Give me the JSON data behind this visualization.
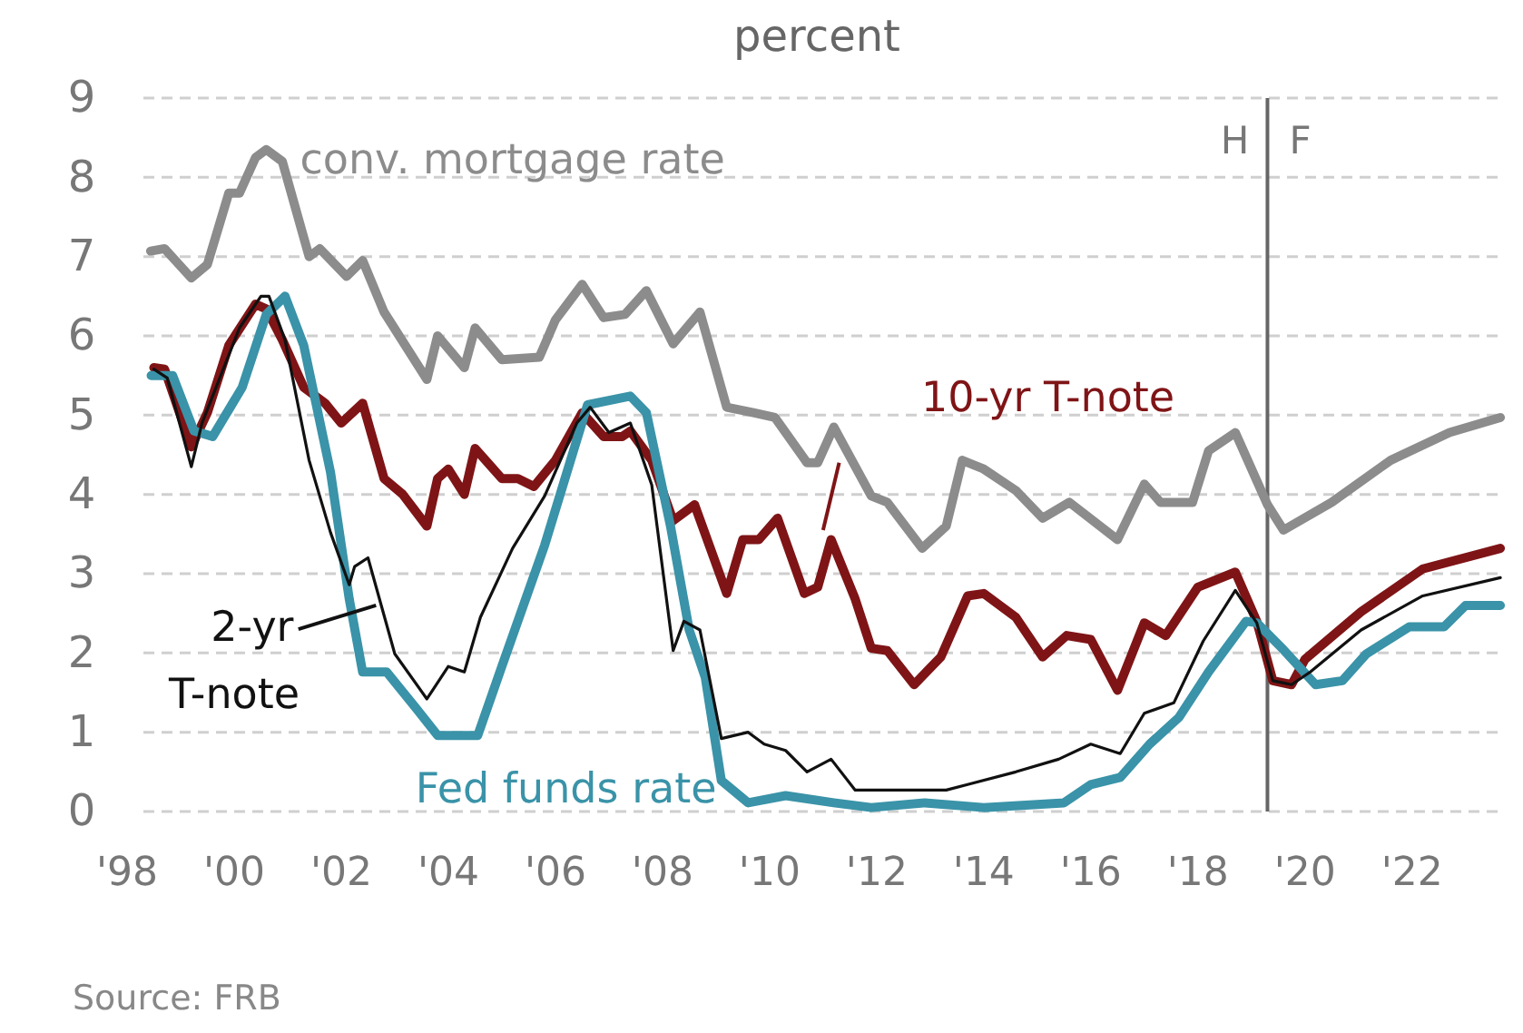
{
  "chart_data": {
    "type": "line",
    "subtitle": "percent",
    "xlim": [
      1998,
      2023.7
    ],
    "xticks": [
      {
        "value": 1998,
        "label": "'98"
      },
      {
        "value": 2000,
        "label": "'00"
      },
      {
        "value": 2002,
        "label": "'02"
      },
      {
        "value": 2004,
        "label": "'04"
      },
      {
        "value": 2006,
        "label": "'06"
      },
      {
        "value": 2008,
        "label": "'08"
      },
      {
        "value": 2010,
        "label": "'10"
      },
      {
        "value": 2012,
        "label": "'12"
      },
      {
        "value": 2014,
        "label": "'14"
      },
      {
        "value": 2016,
        "label": "'16"
      },
      {
        "value": 2018,
        "label": "'18"
      },
      {
        "value": 2020,
        "label": "'20"
      },
      {
        "value": 2022,
        "label": "'22"
      }
    ],
    "ylim": [
      0,
      9
    ],
    "yticks": [
      0,
      1,
      2,
      3,
      4,
      5,
      6,
      7,
      8,
      9
    ],
    "grid": "y",
    "line_style": "solid",
    "marker": "none",
    "series": [
      {
        "name": "conv. mortgage rate",
        "color": "#8c8c8c",
        "x": [
          1998.44,
          1998.7,
          1999.2,
          1999.5,
          1999.9,
          2000.1,
          2000.4,
          2000.6,
          2000.9,
          2001.4,
          2001.6,
          2002.1,
          2002.4,
          2002.8,
          2003.6,
          2003.8,
          2004.3,
          2004.5,
          2005.0,
          2005.7,
          2006.0,
          2006.5,
          2006.9,
          2007.3,
          2007.7,
          2008.2,
          2008.7,
          2009.2,
          2009.7,
          2010.1,
          2010.7,
          2010.9,
          2011.2,
          2011.9,
          2012.2,
          2012.85,
          2013.3,
          2013.6,
          2014.0,
          2014.6,
          2015.1,
          2015.6,
          2016.5,
          2017.0,
          2017.3,
          2017.9,
          2018.2,
          2018.7,
          2019.3,
          2019.6,
          2020.5,
          2021.6,
          2022.7,
          2023.65
        ],
        "values": [
          7.07,
          7.1,
          6.73,
          6.9,
          7.8,
          7.8,
          8.25,
          8.35,
          8.2,
          7.0,
          7.1,
          6.75,
          6.95,
          6.3,
          5.45,
          6.0,
          5.6,
          6.1,
          5.7,
          5.73,
          6.2,
          6.65,
          6.23,
          6.27,
          6.57,
          5.9,
          6.3,
          5.1,
          5.03,
          4.97,
          4.4,
          4.4,
          4.85,
          3.98,
          3.9,
          3.32,
          3.6,
          4.43,
          4.32,
          4.05,
          3.7,
          3.9,
          3.43,
          4.13,
          3.9,
          3.9,
          4.55,
          4.78,
          3.87,
          3.55,
          3.9,
          4.43,
          4.78,
          4.97
        ]
      },
      {
        "name": "10-yr T-note",
        "color": "#7f1416",
        "x": [
          1998.5,
          1998.7,
          1999.2,
          1999.5,
          1999.9,
          2000.4,
          2000.6,
          2000.9,
          2001.3,
          2001.7,
          2002.0,
          2002.4,
          2002.8,
          2003.15,
          2003.6,
          2003.8,
          2004.0,
          2004.3,
          2004.5,
          2005.0,
          2005.3,
          2005.6,
          2006.0,
          2006.5,
          2006.9,
          2007.25,
          2007.4,
          2007.8,
          2008.2,
          2008.6,
          2009.2,
          2009.5,
          2009.8,
          2010.15,
          2010.65,
          2010.9,
          2011.15,
          2011.6,
          2011.9,
          2012.2,
          2012.7,
          2013.2,
          2013.7,
          2014.0,
          2014.6,
          2015.1,
          2015.55,
          2016.0,
          2016.5,
          2017.0,
          2017.4,
          2018.0,
          2018.7,
          2019.1,
          2019.4,
          2019.75,
          2020.0,
          2021.05,
          2022.2,
          2023.65
        ],
        "values": [
          5.6,
          5.58,
          4.6,
          5.03,
          5.88,
          6.4,
          6.34,
          5.95,
          5.35,
          5.15,
          4.9,
          5.15,
          4.2,
          4.0,
          3.6,
          4.2,
          4.32,
          4.0,
          4.58,
          4.2,
          4.2,
          4.1,
          4.43,
          5.03,
          4.73,
          4.73,
          4.8,
          4.43,
          3.67,
          3.87,
          2.75,
          3.43,
          3.43,
          3.7,
          2.75,
          2.83,
          3.43,
          2.68,
          2.06,
          2.03,
          1.6,
          1.95,
          2.72,
          2.75,
          2.45,
          1.95,
          2.22,
          2.17,
          1.53,
          2.38,
          2.22,
          2.83,
          3.02,
          2.4,
          1.65,
          1.6,
          1.92,
          2.52,
          3.06,
          3.32
        ]
      },
      {
        "name": "Fed funds rate",
        "color": "#3a93a8",
        "x": [
          1998.45,
          1998.85,
          1999.25,
          1999.6,
          2000.15,
          2000.6,
          2000.95,
          2001.3,
          2001.8,
          2002.15,
          2002.4,
          2002.85,
          2003.4,
          2003.8,
          2004.55,
          2005.0,
          2005.8,
          2006.6,
          2007.4,
          2007.7,
          2008.15,
          2008.5,
          2008.8,
          2009.1,
          2009.6,
          2010.3,
          2011.2,
          2011.9,
          2012.9,
          2014.0,
          2015.5,
          2016.0,
          2016.55,
          2017.1,
          2017.65,
          2018.2,
          2018.9,
          2019.1,
          2019.6,
          2020.2,
          2020.7,
          2021.15,
          2021.95,
          2022.6,
          2023.0,
          2023.65
        ],
        "values": [
          5.5,
          5.5,
          4.8,
          4.73,
          5.35,
          6.27,
          6.5,
          5.88,
          4.28,
          2.68,
          1.76,
          1.76,
          1.3,
          0.96,
          0.96,
          1.83,
          3.36,
          5.13,
          5.24,
          5.03,
          3.6,
          2.29,
          1.69,
          0.39,
          0.11,
          0.2,
          0.11,
          0.05,
          0.11,
          0.05,
          0.11,
          0.34,
          0.43,
          0.85,
          1.19,
          1.76,
          2.4,
          2.38,
          2.04,
          1.6,
          1.65,
          1.99,
          2.33,
          2.33,
          2.6,
          2.6
        ]
      },
      {
        "name": "2-yr T-note",
        "color": "#111111",
        "x": [
          1998.5,
          1998.75,
          1999.2,
          1999.4,
          2000.1,
          2000.5,
          2000.65,
          2000.95,
          2001.4,
          2001.8,
          2002.15,
          2002.25,
          2002.5,
          2003.0,
          2003.6,
          2004.0,
          2004.3,
          2004.6,
          2005.2,
          2005.8,
          2006.4,
          2006.65,
          2007.0,
          2007.4,
          2007.8,
          2008.2,
          2008.4,
          2008.7,
          2009.1,
          2009.6,
          2009.9,
          2010.3,
          2010.7,
          2011.15,
          2011.6,
          2012.6,
          2013.3,
          2013.7,
          2014.6,
          2015.4,
          2016.0,
          2016.55,
          2017.0,
          2017.55,
          2018.1,
          2018.7,
          2019.1,
          2019.4,
          2019.75,
          2020.1,
          2021.05,
          2022.2,
          2023.65
        ],
        "values": [
          5.58,
          5.47,
          4.35,
          4.9,
          6.1,
          6.5,
          6.5,
          5.95,
          4.43,
          3.52,
          2.86,
          3.09,
          3.2,
          1.99,
          1.42,
          1.83,
          1.76,
          2.45,
          3.32,
          3.98,
          4.9,
          5.1,
          4.78,
          4.9,
          4.12,
          2.03,
          2.4,
          2.29,
          0.92,
          1.0,
          0.85,
          0.77,
          0.5,
          0.66,
          0.27,
          0.27,
          0.27,
          0.34,
          0.5,
          0.66,
          0.85,
          0.73,
          1.24,
          1.37,
          2.15,
          2.79,
          2.38,
          1.65,
          1.6,
          1.76,
          2.29,
          2.72,
          2.95
        ]
      }
    ],
    "ref_lines": [
      {
        "axis": "x",
        "value": 2019.3,
        "label": "H",
        "color": "#666666"
      }
    ],
    "annotations": [
      "F",
      "Source: FRB"
    ]
  }
}
